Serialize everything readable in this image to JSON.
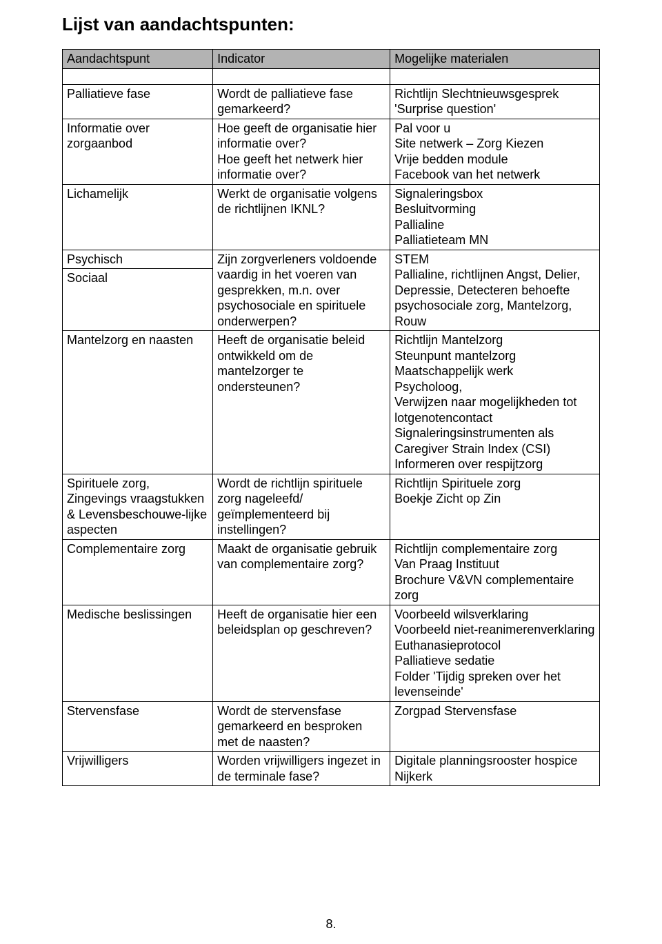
{
  "title": "Lijst van aandachtspunten:",
  "colors": {
    "header_bg": "#b3b3b3",
    "border": "#000000",
    "text": "#000000",
    "page_bg": "#ffffff"
  },
  "header": {
    "col0": "Aandachtspunt",
    "col1": "Indicator",
    "col2": "Mogelijke materialen"
  },
  "rows": {
    "palliatieve": {
      "aandachtspunt": "Palliatieve fase",
      "indicator": "Wordt de palliatieve fase gemarkeerd?",
      "materialen": "Richtlijn Slechtnieuwsgesprek\n'Surprise question'"
    },
    "informatie": {
      "aandachtspunt": "Informatie over zorgaanbod",
      "indicator": "Hoe geeft de organisatie hier informatie over?\nHoe geeft het netwerk hier informatie over?",
      "materialen": "Pal voor u\nSite netwerk – Zorg Kiezen\nVrije bedden module\nFacebook van het netwerk"
    },
    "lichamelijk": {
      "aandachtspunt": "Lichamelijk",
      "indicator": "Werkt de organisatie volgens de richtlijnen IKNL?",
      "materialen": "Signaleringsbox\nBesluitvorming\nPallialine\nPalliatieteam MN"
    },
    "psychsoc": {
      "aandachtspunt_top": "Psychisch",
      "aandachtspunt_bot": "Sociaal",
      "indicator": "Zijn zorgverleners voldoende vaardig in het voeren van gesprekken, m.n. over psychosociale en spirituele onderwerpen?",
      "materialen": "STEM\nPallialine, richtlijnen Angst, Delier, Depressie, Detecteren behoefte psychosociale zorg, Mantelzorg, Rouw"
    },
    "mantelzorg": {
      "aandachtspunt": "Mantelzorg en naasten",
      "indicator": "Heeft de organisatie beleid ontwikkeld om de mantelzorger te ondersteunen?",
      "materialen": "Richtlijn Mantelzorg\nSteunpunt mantelzorg\nMaatschappelijk werk\nPsycholoog,\nVerwijzen naar mogelijkheden tot lotgenotencontact\nSignaleringsinstrumenten als Caregiver Strain Index (CSI)\nInformeren over respijtzorg"
    },
    "spiritueel": {
      "aandachtspunt": "Spirituele zorg, Zingevings vraagstukken & Levensbeschouwe-lijke aspecten",
      "indicator": "Wordt de richtlijn spirituele zorg nageleefd/ geïmplementeerd bij instellingen?",
      "materialen": "Richtlijn Spirituele zorg\nBoekje Zicht op Zin"
    },
    "complementair": {
      "aandachtspunt": "Complementaire zorg",
      "indicator": "Maakt de organisatie gebruik van complementaire zorg?",
      "materialen": "Richtlijn complementaire zorg\nVan Praag Instituut\nBrochure V&VN complementaire zorg"
    },
    "medisch": {
      "aandachtspunt": "Medische beslissingen",
      "indicator": "Heeft de organisatie hier een beleidsplan op geschreven?",
      "materialen": "Voorbeeld wilsverklaring\nVoorbeeld niet-reanimerenverklaring\nEuthanasieprotocol\nPalliatieve sedatie\nFolder 'Tijdig spreken over het levenseinde'"
    },
    "stervens": {
      "aandachtspunt": "Stervensfase",
      "indicator": "Wordt de stervensfase gemarkeerd en besproken met de naasten?",
      "materialen": "Zorgpad Stervensfase"
    },
    "vrijwilligers": {
      "aandachtspunt": "Vrijwilligers",
      "indicator": "Worden vrijwilligers ingezet in de terminale fase?",
      "materialen": "Digitale planningsrooster hospice Nijkerk"
    }
  },
  "page_number": "8."
}
